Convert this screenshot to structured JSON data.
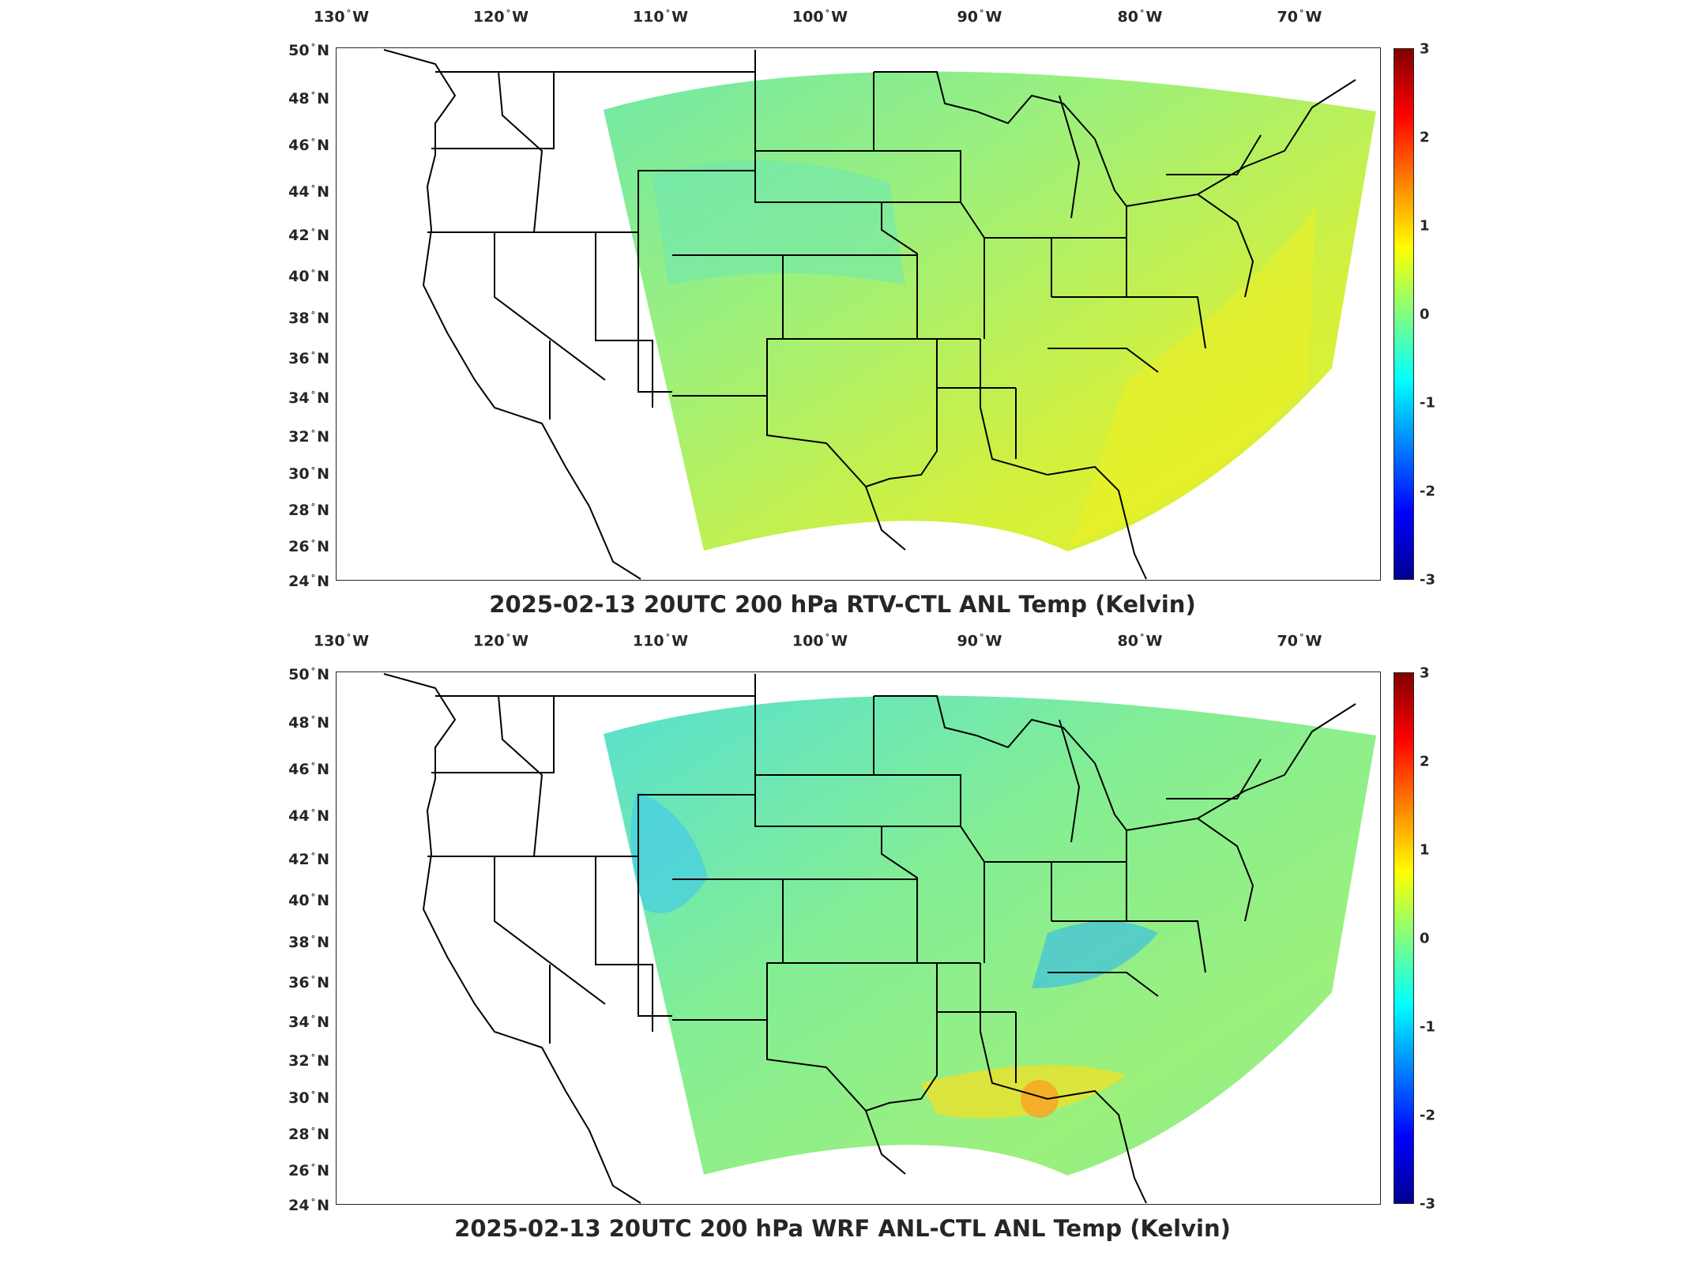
{
  "panels": [
    {
      "title": "2025-02-13 20UTC 200 hPa RTV-CTL ANL Temp (Kelvin)",
      "field_tint": "#c8f040",
      "field_secondary": "#60e8b0",
      "field_pattern": "Mostly near-zero positive (yellow-green) with slightly cooler greens over central/northern plains; warm yellow over Gulf and SE offshore"
    },
    {
      "title": "2025-02-13 20UTC 200 hPa WRF ANL-CTL ANL Temp (Kelvin)",
      "field_tint": "#7af0a0",
      "field_secondary": "#50d8e8",
      "field_pattern": "Mostly near-zero green; cyan/blue negatives over Rockies and Virginia/NC; yellow/orange positives along Gulf coast"
    }
  ],
  "axes": {
    "lon_labels": [
      {
        "deg": "130",
        "dir": "W"
      },
      {
        "deg": "120",
        "dir": "W"
      },
      {
        "deg": "110",
        "dir": "W"
      },
      {
        "deg": "100",
        "dir": "W"
      },
      {
        "deg": "90",
        "dir": "W"
      },
      {
        "deg": "80",
        "dir": "W"
      },
      {
        "deg": "70",
        "dir": "W"
      }
    ],
    "lat_labels": [
      {
        "deg": "50",
        "dir": "N"
      },
      {
        "deg": "48",
        "dir": "N"
      },
      {
        "deg": "46",
        "dir": "N"
      },
      {
        "deg": "44",
        "dir": "N"
      },
      {
        "deg": "42",
        "dir": "N"
      },
      {
        "deg": "40",
        "dir": "N"
      },
      {
        "deg": "38",
        "dir": "N"
      },
      {
        "deg": "36",
        "dir": "N"
      },
      {
        "deg": "34",
        "dir": "N"
      },
      {
        "deg": "32",
        "dir": "N"
      },
      {
        "deg": "30",
        "dir": "N"
      },
      {
        "deg": "28",
        "dir": "N"
      },
      {
        "deg": "26",
        "dir": "N"
      },
      {
        "deg": "24",
        "dir": "N"
      }
    ]
  },
  "colorbar": {
    "ticks": [
      "3",
      "2",
      "1",
      "0",
      "-1",
      "-2",
      "-3"
    ],
    "range": [
      -3,
      3
    ],
    "colormap": "jet"
  },
  "colors": {
    "frame": "#262626",
    "coastline": "#000000"
  }
}
